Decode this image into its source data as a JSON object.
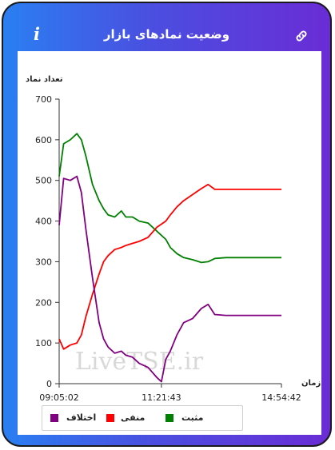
{
  "header": {
    "title": "وضعیت نمادهای بازار",
    "info_icon": "info-icon",
    "link_icon": "link-icon"
  },
  "watermark": "LiveTSE.ir",
  "chart_data": {
    "type": "line",
    "title": "",
    "ylabel": "تعداد نماد",
    "xlabel": "زمان",
    "ylim": [
      0,
      700
    ],
    "yticks": [
      0,
      100,
      200,
      300,
      400,
      500,
      600,
      700
    ],
    "x_tick_labels": [
      "09:05:02",
      "11:21:43",
      "14:54:42"
    ],
    "x_tick_positions": [
      0,
      0.46,
      1.0
    ],
    "series": [
      {
        "name": "مثبت",
        "color": "#008000",
        "x": [
          0,
          0.02,
          0.05,
          0.08,
          0.1,
          0.12,
          0.15,
          0.18,
          0.2,
          0.22,
          0.25,
          0.28,
          0.3,
          0.33,
          0.36,
          0.4,
          0.44,
          0.48,
          0.5,
          0.53,
          0.56,
          0.6,
          0.64,
          0.67,
          0.7,
          0.75,
          0.8,
          0.85,
          0.9,
          0.95,
          1.0
        ],
        "values": [
          510,
          590,
          600,
          615,
          600,
          560,
          490,
          450,
          430,
          415,
          410,
          425,
          410,
          410,
          400,
          395,
          375,
          355,
          335,
          320,
          310,
          305,
          298,
          300,
          308,
          310,
          310,
          310,
          310,
          310,
          310
        ]
      },
      {
        "name": "منفی",
        "color": "#ff0000",
        "x": [
          0,
          0.02,
          0.05,
          0.08,
          0.1,
          0.12,
          0.15,
          0.18,
          0.2,
          0.22,
          0.25,
          0.28,
          0.3,
          0.33,
          0.36,
          0.4,
          0.44,
          0.48,
          0.5,
          0.53,
          0.56,
          0.6,
          0.64,
          0.67,
          0.7,
          0.75,
          0.8,
          0.85,
          0.9,
          0.95,
          1.0
        ],
        "values": [
          110,
          85,
          95,
          100,
          120,
          165,
          220,
          270,
          300,
          315,
          330,
          335,
          340,
          345,
          350,
          360,
          385,
          400,
          415,
          435,
          450,
          465,
          480,
          490,
          478,
          478,
          478,
          478,
          478,
          478,
          478
        ]
      },
      {
        "name": "اختلاف",
        "color": "#800080",
        "x": [
          0,
          0.02,
          0.05,
          0.08,
          0.1,
          0.12,
          0.15,
          0.18,
          0.2,
          0.22,
          0.25,
          0.28,
          0.3,
          0.33,
          0.36,
          0.4,
          0.44,
          0.46,
          0.48,
          0.5,
          0.53,
          0.56,
          0.6,
          0.64,
          0.67,
          0.7,
          0.75,
          0.8,
          0.85,
          0.9,
          0.95,
          1.0
        ],
        "values": [
          390,
          505,
          500,
          510,
          470,
          380,
          260,
          150,
          110,
          90,
          75,
          80,
          70,
          65,
          50,
          40,
          15,
          5,
          60,
          80,
          120,
          150,
          160,
          185,
          195,
          170,
          168,
          168,
          168,
          168,
          168,
          168
        ]
      }
    ],
    "legend": {
      "placement": "bottom-left"
    }
  }
}
